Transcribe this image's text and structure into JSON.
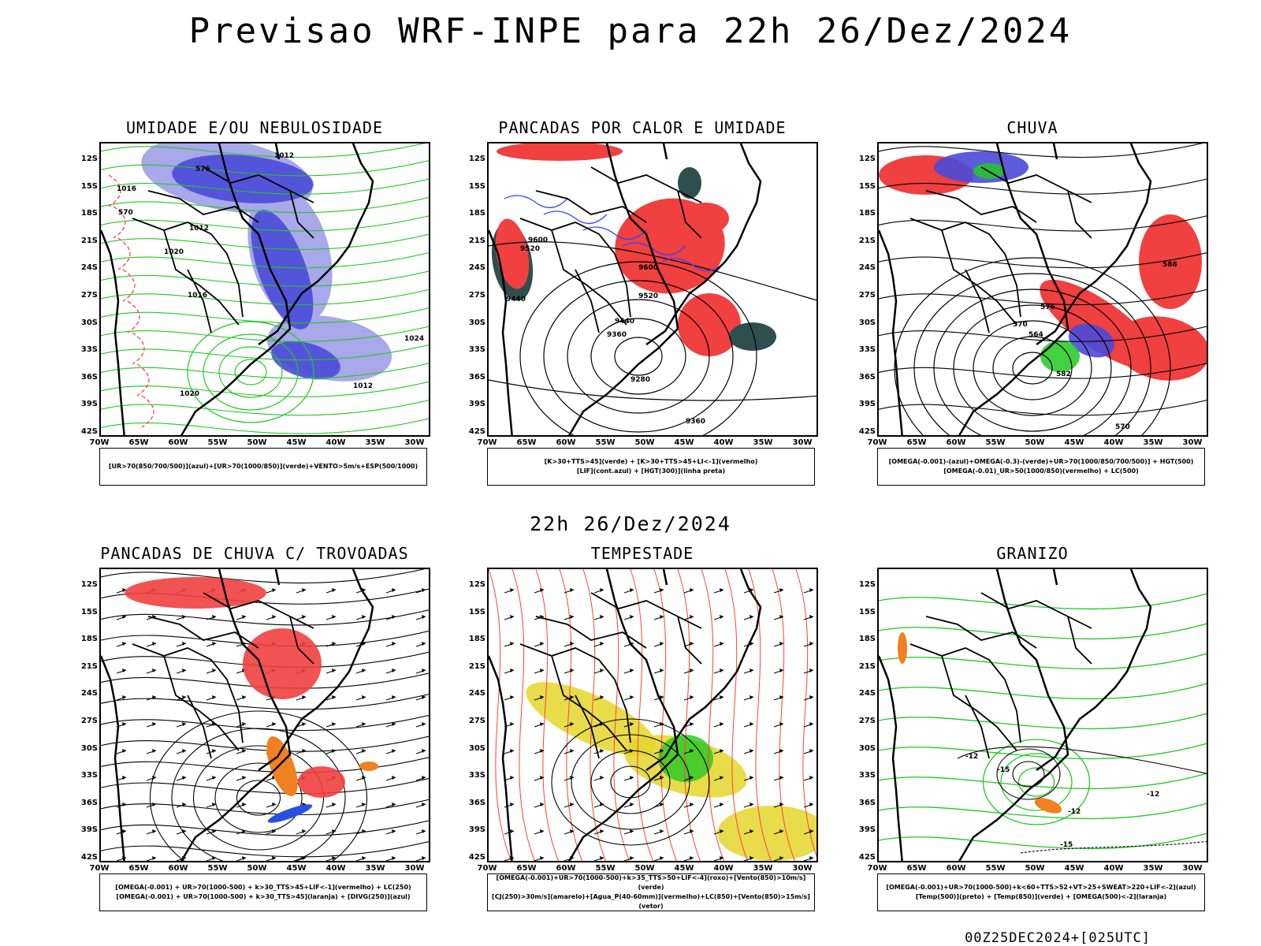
{
  "title": "Previsao WRF-INPE  para 22h 26/Dez/2024",
  "subtitle": "22h 26/Dez/2024",
  "footer": "00Z25DEC2024+[025UTC]",
  "axes": {
    "lat_labels": [
      "12S",
      "15S",
      "18S",
      "21S",
      "24S",
      "27S",
      "30S",
      "33S",
      "36S",
      "39S",
      "42S"
    ],
    "lon_labels": [
      "70W",
      "65W",
      "60W",
      "55W",
      "50W",
      "45W",
      "40W",
      "35W",
      "30W"
    ]
  },
  "colors": {
    "blue_fill": "#4a4ad8",
    "lavender_fill": "#a8a8ea",
    "red_fill": "#f04040",
    "green_line": "#22c822",
    "red_line": "#ff4040",
    "yellow_fill": "#e4d62a",
    "dark_teal": "#2f4f4f",
    "orange": "#f08020",
    "contour": "#000000"
  },
  "panels": [
    {
      "title": "UMIDADE E/OU NEBULOSIDADE",
      "legend": [
        "[UR>70(850/700/500)](azul)+[UR>70(1000/850)](verde)+VENTO>5m/s+ESP(500/1000)"
      ],
      "contour_labels": [
        "1012",
        "1012",
        "1016",
        "1020",
        "1024",
        "1016",
        "1020",
        "1012",
        "570",
        "576"
      ]
    },
    {
      "title": "PANCADAS POR CALOR E UMIDADE",
      "legend": [
        "[K>30+TTS>45](verde) + [K>30+TTS>45+LI<-1](vermelho)",
        "[LIF](cont.azul) + [HGT(300)](linha preta)"
      ],
      "contour_labels": [
        "9600",
        "9520",
        "9440",
        "9600",
        "9520",
        "9440",
        "9360",
        "9280",
        "9360"
      ]
    },
    {
      "title": "CHUVA",
      "legend": [
        "[OMEGA(-0.001)-(azul)+OMEGA(-0.3)-(verde)+UR>70(1000/850/700/500)] + HGT(500)",
        "[OMEGA(-0.01)_UR>50(1000/850)(vermelho) + LC(500)"
      ],
      "contour_labels": [
        "576",
        "570",
        "564",
        "582",
        "588",
        "570"
      ]
    },
    {
      "title": "PANCADAS DE CHUVA C/ TROVOADAS",
      "legend": [
        "[OMEGA(-0.001) + UR>70(1000-500) + k>30_TTS>45+LIF<-1](vermelho) + LC(250)",
        "[OMEGA(-0.001) + UR>70(1000-500) + k>30_TTS>45](laranja) + [DIVG(250)](azul)"
      ],
      "contour_labels": []
    },
    {
      "title": "TEMPESTADE",
      "legend": [
        "[OMEGA(-0.001)+UR>70(1000-500)+k>35_TTS>50+LIF<-4](roxo)+[Vento(850)>10m/s](verde)",
        "[CJ(250)>30m/s](amarelo)+[Agua_P(40-60mm)](vermelho)+LC(850)+[Vento(850)>15m/s](vetor)"
      ],
      "contour_labels": []
    },
    {
      "title": "GRANIZO",
      "legend": [
        "[OMEGA(-0.001)+UR>70(1000-500)+k<60+TTS>52+VT>25+SWEAT>220+LIF<-2](azul)",
        "[Temp(500)](preto) + [Temp(850)](verde) + [OMEGA(500)<-2](laranja)"
      ],
      "contour_labels": [
        "-12",
        "-15",
        "-12",
        "-12",
        "-15"
      ]
    }
  ]
}
